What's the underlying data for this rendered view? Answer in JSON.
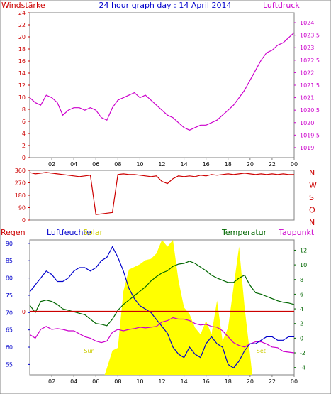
{
  "title": "24 hour graph day : 14 April 2014",
  "colors": {
    "frame": "#808080",
    "wind": "#cc0000",
    "pressure": "#cc00cc",
    "humidity": "#0000cc",
    "solar": "#ffff00",
    "solar_label": "#cccc00",
    "temperature": "#006600",
    "dewpoint": "#cc00cc",
    "rain": "#cc0000",
    "blue_axis": "#0000cc",
    "green_axis": "#006600"
  },
  "chart_data": [
    {
      "id": "wind-pressure",
      "type": "line",
      "left_label": "Windstärke",
      "right_label": "Luftdruck",
      "x_ticks": [
        "02",
        "04",
        "06",
        "08",
        "10",
        "12",
        "14",
        "16",
        "18",
        "20",
        "22",
        "00"
      ],
      "left_ticks": [
        "0",
        "2",
        "4",
        "6",
        "8",
        "10",
        "12",
        "14",
        "16",
        "18",
        "20",
        "22",
        "24"
      ],
      "left_range": [
        0,
        24
      ],
      "right_ticks": [
        "1019",
        "1019.5",
        "1020",
        "1020.5",
        "1021",
        "1021.5",
        "1022",
        "1022.5",
        "1023",
        "1023.5",
        "1024"
      ],
      "right_range": [
        1018.6,
        1024.4
      ],
      "series": [
        {
          "name": "Luftdruck",
          "axis": "right",
          "x": [
            0,
            0.5,
            1,
            1.5,
            2,
            2.5,
            3,
            3.5,
            4,
            4.5,
            5,
            5.5,
            6,
            6.5,
            7,
            7.5,
            8,
            8.5,
            9,
            9.5,
            10,
            10.5,
            11,
            11.5,
            12,
            12.5,
            13,
            13.5,
            14,
            14.5,
            15,
            15.5,
            16,
            16.5,
            17,
            17.5,
            18,
            18.5,
            19,
            19.5,
            20,
            20.5,
            21,
            21.5,
            22,
            22.5,
            23,
            23.5,
            24
          ],
          "values": [
            1021.0,
            1020.8,
            1020.7,
            1021.1,
            1021.0,
            1020.8,
            1020.3,
            1020.5,
            1020.6,
            1020.6,
            1020.5,
            1020.6,
            1020.5,
            1020.2,
            1020.1,
            1020.6,
            1020.9,
            1021.0,
            1021.1,
            1021.2,
            1021.0,
            1021.1,
            1020.9,
            1020.7,
            1020.5,
            1020.3,
            1020.2,
            1020.0,
            1019.8,
            1019.7,
            1019.8,
            1019.9,
            1019.9,
            1020.0,
            1020.1,
            1020.3,
            1020.5,
            1020.7,
            1021.0,
            1021.3,
            1021.7,
            1022.1,
            1022.5,
            1022.8,
            1022.9,
            1023.1,
            1023.2,
            1023.4,
            1023.6
          ]
        }
      ]
    },
    {
      "id": "wind-direction",
      "type": "line",
      "left_ticks": [
        "0",
        "90",
        "180",
        "270",
        "360"
      ],
      "left_range": [
        0,
        360
      ],
      "right_ticks": [
        "N",
        "W",
        "S",
        "O",
        "N"
      ],
      "series": [
        {
          "name": "Windrichtung",
          "axis": "left",
          "x": [
            0,
            0.5,
            1,
            1.5,
            2,
            2.5,
            3,
            3.5,
            4,
            4.5,
            5,
            5.5,
            6,
            6.5,
            7,
            7.5,
            8,
            8.5,
            9,
            9.5,
            10,
            10.5,
            11,
            11.5,
            12,
            12.5,
            13,
            13.5,
            14,
            14.5,
            15,
            15.5,
            16,
            16.5,
            17,
            17.5,
            18,
            18.5,
            19,
            19.5,
            20,
            20.5,
            21,
            21.5,
            22,
            22.5,
            23,
            23.5,
            24
          ],
          "values": [
            345,
            335,
            340,
            345,
            340,
            335,
            330,
            325,
            320,
            315,
            320,
            325,
            40,
            45,
            50,
            55,
            330,
            335,
            330,
            330,
            325,
            320,
            315,
            320,
            280,
            265,
            300,
            320,
            315,
            320,
            315,
            325,
            320,
            330,
            325,
            330,
            335,
            330,
            335,
            340,
            335,
            330,
            335,
            330,
            335,
            330,
            335,
            330,
            330
          ]
        }
      ]
    },
    {
      "id": "humidity-temperature",
      "type": "line",
      "left_labels": [
        "Regen",
        "Luftfeuchte",
        "Solar"
      ],
      "right_labels": [
        "Temperatur",
        "Taupunkt"
      ],
      "left_ticks": [
        "55",
        "60",
        "65",
        "70",
        "75",
        "80",
        "85",
        "90"
      ],
      "left_range": [
        52,
        91
      ],
      "right_ticks": [
        "-4",
        "-2",
        "0",
        "2",
        "4",
        "6",
        "8",
        "10",
        "12"
      ],
      "right_range": [
        -5,
        13.4
      ],
      "rain_label": "0",
      "sun_labels": [
        "Sun",
        "Set"
      ],
      "series": [
        {
          "name": "Luftfeuchte",
          "axis": "left",
          "x": [
            0,
            0.5,
            1,
            1.5,
            2,
            2.5,
            3,
            3.5,
            4,
            4.5,
            5,
            5.5,
            6,
            6.5,
            7,
            7.5,
            8,
            8.5,
            9,
            9.5,
            10,
            10.5,
            11,
            11.5,
            12,
            12.5,
            13,
            13.5,
            14,
            14.5,
            15,
            15.5,
            16,
            16.5,
            17,
            17.5,
            18,
            18.5,
            19,
            19.5,
            20,
            20.5,
            21,
            21.5,
            22,
            22.5,
            23,
            23.5,
            24
          ],
          "values": [
            76,
            78,
            80,
            82,
            81,
            79,
            79,
            80,
            82,
            83,
            83,
            82,
            83,
            85,
            86,
            89,
            86,
            82,
            77,
            74,
            72,
            71,
            70,
            68,
            66,
            64,
            60,
            58,
            57,
            60,
            58,
            57,
            61,
            63,
            61,
            60,
            55,
            54,
            56,
            59,
            61,
            61,
            62,
            63,
            63,
            62,
            62,
            63,
            63
          ]
        },
        {
          "name": "Temperatur",
          "axis": "right",
          "x": [
            0,
            0.5,
            1,
            1.5,
            2,
            2.5,
            3,
            3.5,
            4,
            4.5,
            5,
            5.5,
            6,
            6.5,
            7,
            7.5,
            8,
            8.5,
            9,
            9.5,
            10,
            10.5,
            11,
            11.5,
            12,
            12.5,
            13,
            13.5,
            14,
            14.5,
            15,
            15.5,
            16,
            16.5,
            17,
            17.5,
            18,
            18.5,
            19,
            19.5,
            20,
            20.5,
            21,
            21.5,
            22,
            22.5,
            23,
            23.5,
            24
          ],
          "values": [
            4.5,
            3.5,
            5.0,
            5.2,
            5.0,
            4.6,
            4.0,
            3.8,
            3.6,
            3.4,
            3.2,
            2.6,
            2.0,
            1.9,
            1.7,
            2.6,
            3.8,
            4.6,
            5.2,
            5.8,
            6.4,
            7.0,
            7.8,
            8.4,
            8.9,
            9.2,
            9.8,
            10.1,
            10.2,
            10.5,
            10.2,
            9.7,
            9.2,
            8.6,
            8.2,
            7.9,
            7.6,
            7.6,
            8.2,
            8.6,
            7.2,
            6.2,
            6.0,
            5.7,
            5.4,
            5.1,
            4.9,
            4.8,
            4.6
          ]
        },
        {
          "name": "Taupunkt",
          "axis": "right",
          "x": [
            0,
            0.5,
            1,
            1.5,
            2,
            2.5,
            3,
            3.5,
            4,
            4.5,
            5,
            5.5,
            6,
            6.5,
            7,
            7.5,
            8,
            8.5,
            9,
            9.5,
            10,
            10.5,
            11,
            11.5,
            12,
            12.5,
            13,
            13.5,
            14,
            14.5,
            15,
            15.5,
            16,
            16.5,
            17,
            17.5,
            18,
            18.5,
            19,
            19.5,
            20,
            20.5,
            21,
            21.5,
            22,
            22.5,
            23,
            23.5,
            24
          ],
          "values": [
            0.5,
            0.0,
            1.2,
            1.6,
            1.2,
            1.3,
            1.2,
            1.0,
            1.0,
            0.6,
            0.2,
            0.0,
            -0.4,
            -0.6,
            -0.4,
            0.8,
            1.2,
            1.0,
            1.2,
            1.3,
            1.5,
            1.4,
            1.5,
            1.6,
            2.2,
            2.4,
            2.8,
            2.6,
            2.6,
            2.4,
            2.0,
            1.8,
            1.9,
            1.6,
            1.5,
            1.0,
            0.2,
            -0.6,
            -1.0,
            -1.2,
            -0.8,
            -0.5,
            -0.5,
            -0.8,
            -1.2,
            -1.3,
            -1.8,
            -1.9,
            -2.0
          ]
        },
        {
          "name": "Solar",
          "axis": "none",
          "type": "area",
          "x": [
            0,
            6.8,
            7.0,
            7.5,
            8.0,
            8.5,
            9.0,
            9.5,
            10.0,
            10.5,
            11.0,
            11.5,
            12.0,
            12.5,
            13.0,
            13.5,
            14.0,
            14.5,
            15.0,
            15.5,
            16.0,
            16.5,
            17.0,
            17.5,
            18.0,
            18.5,
            19.0,
            19.5,
            20.0,
            20.2,
            24
          ],
          "values": [
            0,
            0,
            0.05,
            0.18,
            0.2,
            0.62,
            0.78,
            0.8,
            0.82,
            0.85,
            0.86,
            0.9,
            1.0,
            0.95,
            1.0,
            0.7,
            0.5,
            0.45,
            0.35,
            0.3,
            0.4,
            0.3,
            0.55,
            0.25,
            0.35,
            0.65,
            0.95,
            0.5,
            0.15,
            0,
            0
          ]
        },
        {
          "name": "Regen",
          "axis": "none",
          "x": [
            0,
            24
          ],
          "values": [
            0,
            0
          ]
        }
      ]
    }
  ]
}
